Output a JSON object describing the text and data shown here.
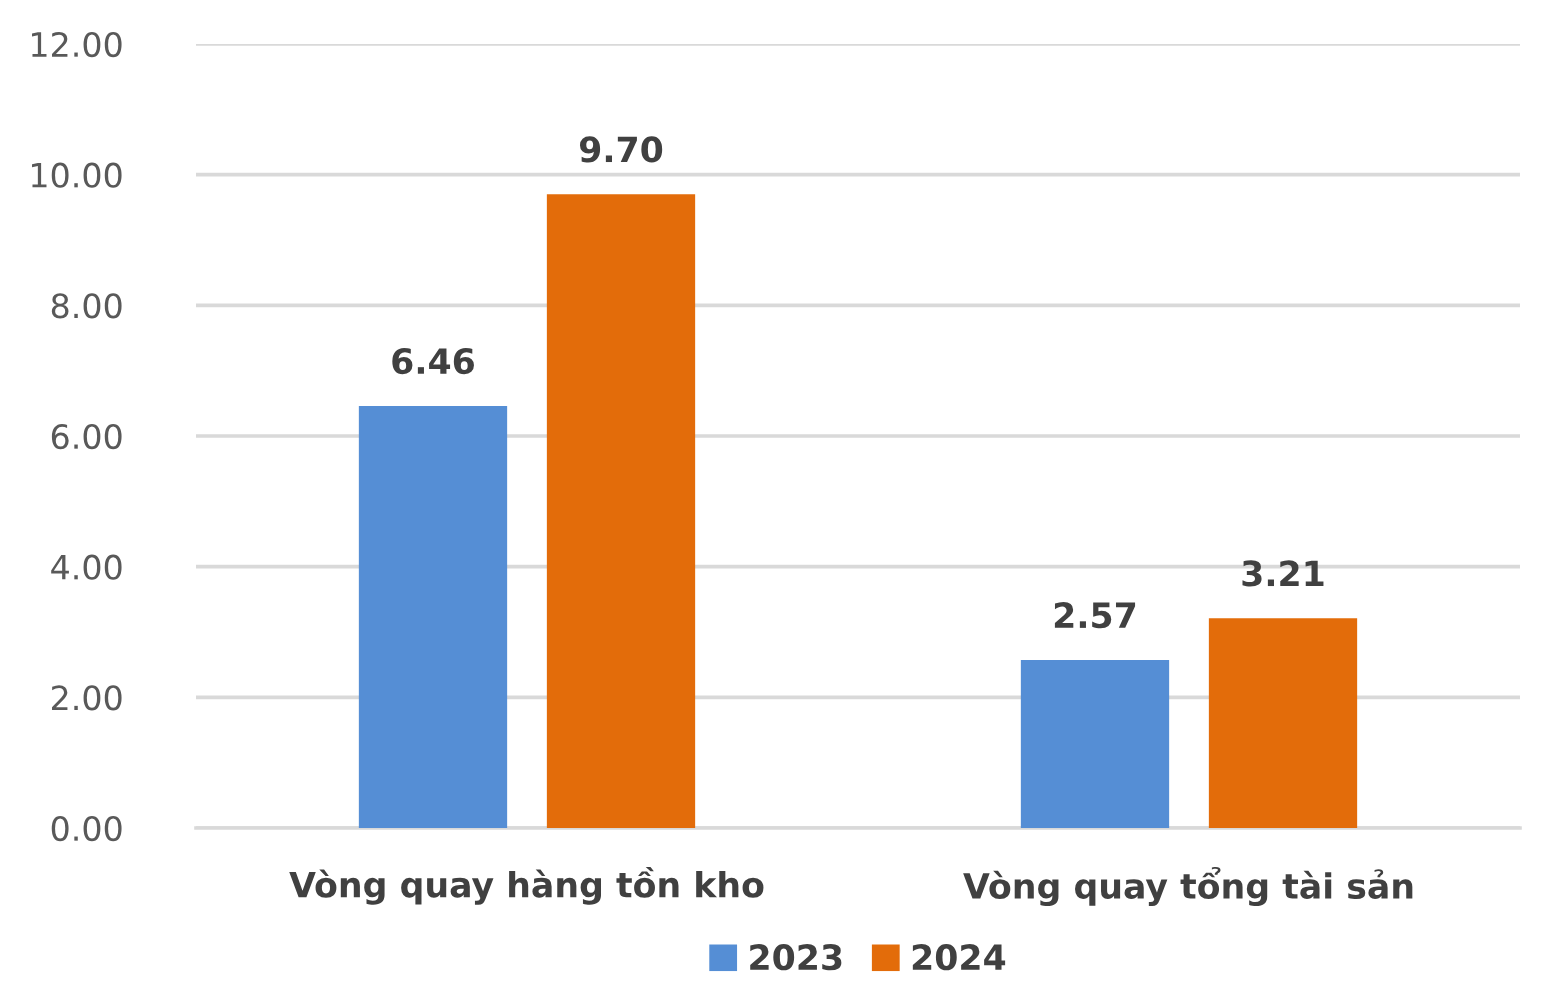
{
  "chart_data": {
    "type": "bar",
    "categories": [
      "Vòng quay hàng tồn kho",
      "Vòng quay tổng tài sản"
    ],
    "series": [
      {
        "name": "2023",
        "color": "#558ed5",
        "values": [
          6.46,
          2.57
        ],
        "value_labels": [
          "6.46",
          "2.57"
        ]
      },
      {
        "name": "2024",
        "color": "#e36c0a",
        "values": [
          9.7,
          3.21
        ],
        "value_labels": [
          "9.70",
          "3.21"
        ]
      }
    ],
    "ylim": [
      0,
      12
    ],
    "yticks": [
      {
        "value": 0,
        "label": "0.00"
      },
      {
        "value": 2,
        "label": "2.00"
      },
      {
        "value": 4,
        "label": "4.00"
      },
      {
        "value": 6,
        "label": "6.00"
      },
      {
        "value": 8,
        "label": "8.00"
      },
      {
        "value": 10,
        "label": "10.00"
      },
      {
        "value": 12,
        "label": "12.00"
      }
    ],
    "grid": "y",
    "legend": "bottom"
  }
}
